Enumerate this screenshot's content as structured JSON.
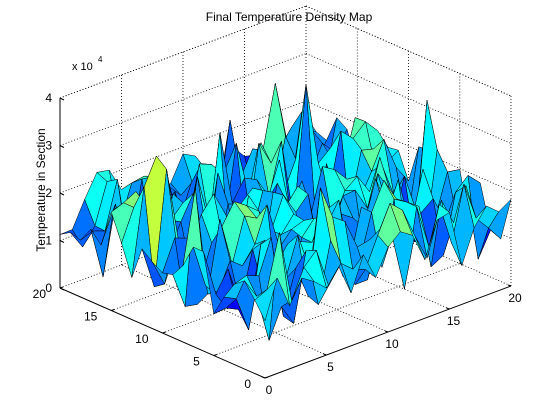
{
  "chart_data": {
    "type": "surface",
    "title": "Final Temperature Density Map",
    "xlabel": "",
    "ylabel": "",
    "zlabel": "Temperature in Section",
    "exponent_label": "x 10",
    "exponent_power": "4",
    "xlim": [
      0,
      20
    ],
    "ylim": [
      0,
      20
    ],
    "zlim": [
      0,
      40000
    ],
    "x_ticks": [
      "0",
      "5",
      "10",
      "15",
      "20"
    ],
    "y_ticks": [
      "0",
      "5",
      "10",
      "15",
      "20"
    ],
    "z_ticks": [
      "0",
      "1",
      "2",
      "3",
      "4"
    ],
    "grid": true,
    "colormap": "jet",
    "grid_size": 20,
    "random_seed": 7,
    "value_range": [
      0,
      36000
    ]
  }
}
